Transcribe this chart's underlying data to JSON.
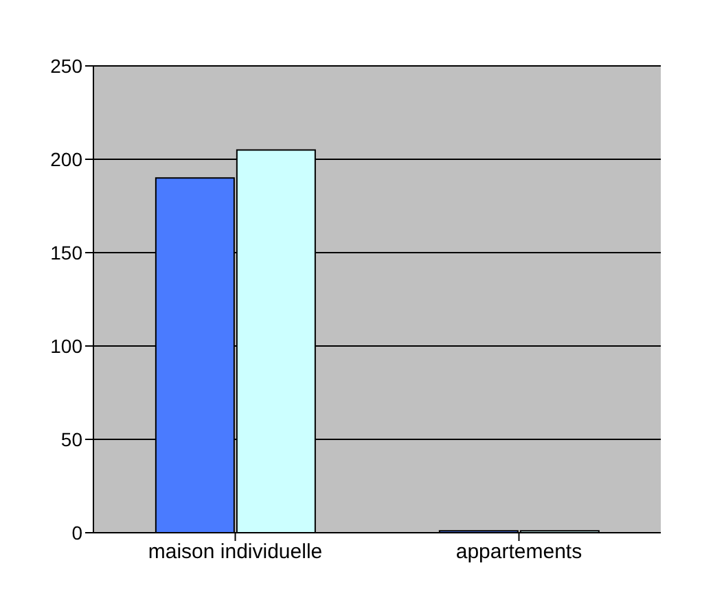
{
  "chart_data": {
    "type": "bar",
    "categories": [
      "maison individuelle",
      "appartements"
    ],
    "series": [
      {
        "color": "#4a7bff",
        "values": [
          190,
          1
        ]
      },
      {
        "color": "#ccffff",
        "values": [
          205,
          1
        ]
      }
    ],
    "ylim": [
      0,
      250
    ],
    "yticks": [
      0,
      50,
      100,
      150,
      200,
      250
    ],
    "grid": "y"
  }
}
